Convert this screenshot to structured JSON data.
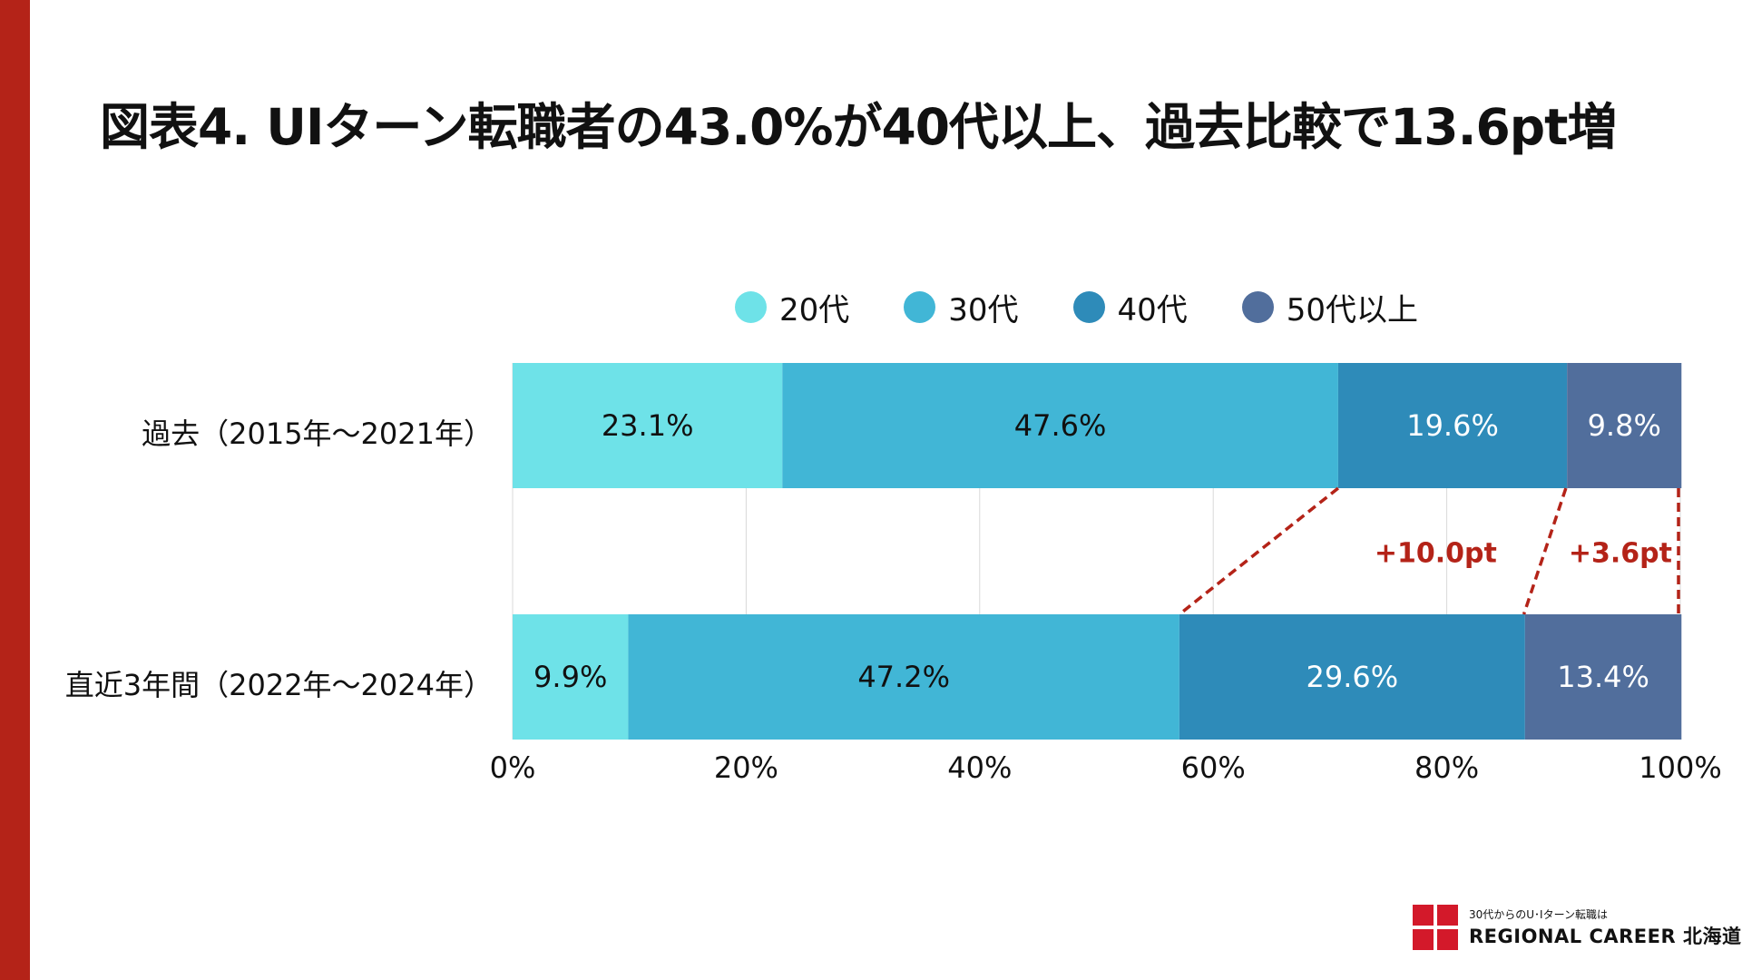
{
  "title": "図表4. UIターン転職者の43.0%が40代以上、過去比較で13.6pt増",
  "legend": [
    {
      "label": "20代",
      "color": "#6ee2e8"
    },
    {
      "label": "30代",
      "color": "#41b6d6"
    },
    {
      "label": "40代",
      "color": "#2e8bb9"
    },
    {
      "label": "50代以上",
      "color": "#516e9c"
    }
  ],
  "chart_data": {
    "type": "bar",
    "orientation": "horizontal",
    "stacked": true,
    "categories": [
      "過去（2015年～2021年）",
      "直近3年間（2022年～2024年）"
    ],
    "series": [
      {
        "name": "20代",
        "values": [
          23.1,
          9.9
        ],
        "labels": [
          "23.1%",
          "9.9%"
        ],
        "color": "#6ee2e8",
        "label_color": "#111111"
      },
      {
        "name": "30代",
        "values": [
          47.6,
          47.2
        ],
        "labels": [
          "47.6%",
          "47.2%"
        ],
        "color": "#41b6d6",
        "label_color": "#111111"
      },
      {
        "name": "40代",
        "values": [
          19.6,
          29.6
        ],
        "labels": [
          "19.6%",
          "29.6%"
        ],
        "color": "#2e8bb9",
        "label_color": "#ffffff"
      },
      {
        "name": "50代以上",
        "values": [
          9.8,
          13.4
        ],
        "labels": [
          "9.8%",
          "13.4%"
        ],
        "color": "#516e9c",
        "label_color": "#ffffff"
      }
    ],
    "x_ticks": [
      "0%",
      "20%",
      "40%",
      "60%",
      "80%",
      "100%"
    ],
    "xlim": [
      0,
      100
    ],
    "grid": true,
    "legend_position": "top",
    "annotations": [
      {
        "text": "+10.0pt",
        "color": "#b42318",
        "from_boundary": [
          70.7,
          57.1
        ]
      },
      {
        "text": "+3.6pt",
        "color": "#b42318",
        "from_boundary": [
          90.2,
          86.6
        ]
      }
    ],
    "connector_color": "#b42318"
  },
  "footer": {
    "tagline": "30代からのU･Iターン転職は",
    "brand": "REGIONAL CAREER 北海道",
    "mark_color": "#d3192a"
  }
}
